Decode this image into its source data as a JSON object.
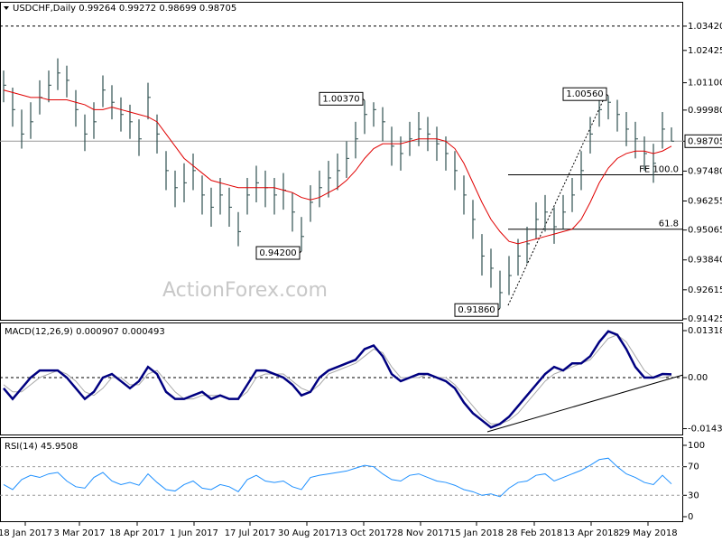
{
  "chart_data": [
    {
      "type": "ohlc",
      "title": "USDCHF,Daily 0.99264 0.99272 0.98699 0.98705",
      "watermark": "ActionForex.com",
      "xlim": [
        0,
        74
      ],
      "xticks": [
        {
          "value": 2.4,
          "label": "18 Jan 2017"
        },
        {
          "value": 8.4,
          "label": "3 Mar 2017"
        },
        {
          "value": 14.8,
          "label": "18 Apr 2017"
        },
        {
          "value": 21.1,
          "label": "1 Jun 2017"
        },
        {
          "value": 27.3,
          "label": "17 Jul 2017"
        },
        {
          "value": 33.6,
          "label": "30 Aug 2017"
        },
        {
          "value": 39.9,
          "label": "13 Oct 2017"
        },
        {
          "value": 46.2,
          "label": "28 Nov 2017"
        },
        {
          "value": 52.4,
          "label": "15 Jan 2018"
        },
        {
          "value": 58.8,
          "label": "28 Feb 2018"
        },
        {
          "value": 65.1,
          "label": "13 Apr 2018"
        },
        {
          "value": 71.4,
          "label": "29 May 2018"
        }
      ],
      "ylim": [
        0.9135,
        1.0438
      ],
      "yticks": [
        {
          "value": 1.0342,
          "label": "1.03420"
        },
        {
          "value": 1.02425,
          "label": "1.02425"
        },
        {
          "value": 1.011,
          "label": "1.01100"
        },
        {
          "value": 0.9998,
          "label": "0.99980"
        },
        {
          "value": 0.98705,
          "label": "0.98705"
        },
        {
          "value": 0.9748,
          "label": "0.97480"
        },
        {
          "value": 0.96255,
          "label": "0.96255"
        },
        {
          "value": 0.95065,
          "label": "0.95065"
        },
        {
          "value": 0.9384,
          "label": "0.93840"
        },
        {
          "value": 0.92615,
          "label": "0.92615"
        },
        {
          "value": 0.91425,
          "label": "0.91425"
        }
      ],
      "color": "#2f4f4f",
      "high": [
        1.016,
        1.009,
        1.0,
        1.003,
        1.012,
        1.016,
        1.021,
        1.018,
        1.008,
        0.998,
        1.003,
        1.014,
        1.01,
        1.005,
        1.002,
        0.996,
        1.011,
        0.998,
        0.983,
        0.975,
        0.978,
        0.982,
        0.973,
        0.968,
        0.972,
        0.968,
        0.958,
        0.972,
        0.977,
        0.975,
        0.972,
        0.974,
        0.966,
        0.956,
        0.969,
        0.975,
        0.979,
        0.982,
        0.987,
        0.995,
        1.0037,
        1.003,
        1.001,
        0.993,
        0.989,
        0.995,
        0.999,
        0.997,
        0.993,
        0.989,
        0.983,
        0.973,
        0.963,
        0.949,
        0.943,
        0.934,
        0.94,
        0.947,
        0.952,
        0.962,
        0.965,
        0.96,
        0.965,
        0.972,
        0.983,
        0.997,
        1.004,
        1.0056,
        1.004,
        0.999,
        0.995,
        0.989,
        0.986,
        0.999,
        0.9927
      ],
      "low": [
        1.003,
        0.993,
        0.984,
        0.988,
        0.998,
        1.003,
        1.008,
        1.005,
        0.993,
        0.983,
        0.988,
        1.001,
        0.996,
        0.991,
        0.988,
        0.981,
        0.996,
        0.982,
        0.967,
        0.96,
        0.962,
        0.967,
        0.957,
        0.952,
        0.957,
        0.952,
        0.944,
        0.957,
        0.962,
        0.96,
        0.957,
        0.959,
        0.95,
        0.942,
        0.954,
        0.96,
        0.964,
        0.967,
        0.972,
        0.98,
        0.99,
        0.993,
        0.987,
        0.977,
        0.975,
        0.981,
        0.985,
        0.983,
        0.979,
        0.975,
        0.967,
        0.957,
        0.947,
        0.932,
        0.927,
        0.9186,
        0.924,
        0.932,
        0.937,
        0.947,
        0.95,
        0.945,
        0.951,
        0.958,
        0.967,
        0.982,
        0.993,
        0.996,
        0.991,
        0.985,
        0.98,
        0.975,
        0.97,
        0.984,
        0.987
      ],
      "close": [
        1.01,
        1.0,
        0.99,
        0.995,
        1.005,
        1.01,
        1.015,
        1.012,
        1.0,
        0.99,
        0.995,
        1.008,
        1.003,
        0.998,
        0.995,
        0.988,
        1.005,
        0.99,
        0.975,
        0.968,
        0.97,
        0.975,
        0.965,
        0.96,
        0.965,
        0.96,
        0.95,
        0.965,
        0.97,
        0.968,
        0.965,
        0.967,
        0.958,
        0.948,
        0.962,
        0.968,
        0.972,
        0.975,
        0.98,
        0.988,
        0.998,
        1.0,
        0.995,
        0.985,
        0.982,
        0.988,
        0.992,
        0.99,
        0.986,
        0.982,
        0.975,
        0.965,
        0.955,
        0.94,
        0.935,
        0.925,
        0.932,
        0.94,
        0.945,
        0.955,
        0.958,
        0.952,
        0.958,
        0.965,
        0.975,
        0.99,
        1.0,
        1.003,
        0.998,
        0.992,
        0.988,
        0.982,
        0.978,
        0.992,
        0.98705
      ],
      "moving_average": {
        "color": "#e00000",
        "values": [
          1.008,
          1.007,
          1.006,
          1.005,
          1.005,
          1.004,
          1.004,
          1.004,
          1.003,
          1.002,
          1.0,
          1.0,
          1.001,
          1.0,
          0.999,
          0.998,
          0.997,
          0.995,
          0.99,
          0.985,
          0.98,
          0.977,
          0.974,
          0.971,
          0.97,
          0.969,
          0.968,
          0.968,
          0.968,
          0.968,
          0.968,
          0.967,
          0.966,
          0.964,
          0.963,
          0.964,
          0.966,
          0.968,
          0.971,
          0.975,
          0.98,
          0.984,
          0.986,
          0.986,
          0.986,
          0.987,
          0.988,
          0.988,
          0.988,
          0.987,
          0.984,
          0.978,
          0.97,
          0.962,
          0.955,
          0.95,
          0.946,
          0.945,
          0.946,
          0.947,
          0.948,
          0.949,
          0.95,
          0.951,
          0.955,
          0.962,
          0.97,
          0.976,
          0.98,
          0.982,
          0.983,
          0.983,
          0.982,
          0.983,
          0.985
        ]
      },
      "levels": [
        {
          "label": "FE 100.0",
          "value": 0.9733
        },
        {
          "label": "61.8",
          "value": 0.951
        }
      ],
      "annotations": [
        {
          "label": "1.00370",
          "value": 1.0037,
          "x": 40
        },
        {
          "label": "0.94200",
          "value": 0.942,
          "x": 33
        },
        {
          "label": "0.91860",
          "value": 0.9186,
          "x": 55
        },
        {
          "label": "1.00560",
          "value": 1.0056,
          "x": 67
        }
      ]
    },
    {
      "type": "macd",
      "title": "MACD(12,26,9) 0.000907 0.000493",
      "xlim": [
        0,
        74
      ],
      "ylim": [
        -0.01623,
        0.01521
      ],
      "yticks": [
        0.013184,
        {
          "value": 0,
          "label": "0.00"
        },
        -0.014339
      ],
      "series": [
        {
          "name": "MACD",
          "color": "#000080",
          "values": [
            -0.003,
            -0.006,
            -0.003,
            0.0,
            0.002,
            0.002,
            0.002,
            0.0,
            -0.003,
            -0.006,
            -0.004,
            0.0,
            0.001,
            -0.001,
            -0.003,
            -0.001,
            0.003,
            0.001,
            -0.004,
            -0.006,
            -0.006,
            -0.005,
            -0.004,
            -0.006,
            -0.005,
            -0.006,
            -0.006,
            -0.002,
            0.002,
            0.002,
            0.001,
            0.0,
            -0.002,
            -0.005,
            -0.004,
            0.0,
            0.002,
            0.003,
            0.004,
            0.005,
            0.008,
            0.009,
            0.006,
            0.001,
            -0.001,
            0.0,
            0.001,
            0.001,
            0.0,
            -0.001,
            -0.003,
            -0.007,
            -0.01,
            -0.012,
            -0.014,
            -0.013,
            -0.011,
            -0.008,
            -0.005,
            -0.002,
            0.001,
            0.003,
            0.002,
            0.004,
            0.004,
            0.006,
            0.01,
            0.013,
            0.012,
            0.008,
            0.003,
            0.0,
            0.0,
            0.001,
            0.000907
          ]
        },
        {
          "name": "Signal",
          "color": "#a8a8a8",
          "values": [
            -0.002,
            -0.004,
            -0.004,
            -0.002,
            0.0,
            0.001,
            0.002,
            0.001,
            -0.001,
            -0.004,
            -0.005,
            -0.003,
            0.0,
            0.0,
            -0.002,
            -0.002,
            0.001,
            0.002,
            -0.001,
            -0.004,
            -0.006,
            -0.006,
            -0.005,
            -0.005,
            -0.005,
            -0.006,
            -0.006,
            -0.004,
            0.0,
            0.001,
            0.001,
            0.001,
            -0.001,
            -0.003,
            -0.004,
            -0.002,
            0.001,
            0.002,
            0.003,
            0.004,
            0.006,
            0.008,
            0.007,
            0.003,
            0.0,
            0.0,
            0.0,
            0.001,
            0.0,
            0.0,
            -0.002,
            -0.005,
            -0.008,
            -0.011,
            -0.013,
            -0.013,
            -0.012,
            -0.01,
            -0.007,
            -0.004,
            -0.001,
            0.001,
            0.002,
            0.003,
            0.004,
            0.005,
            0.008,
            0.011,
            0.012,
            0.01,
            0.006,
            0.002,
            0.0,
            0.0,
            0.000493
          ]
        }
      ]
    },
    {
      "type": "rsi",
      "title": "RSI(14) 45.9508",
      "xlim": [
        0,
        74
      ],
      "ylim": [
        -7.6,
        110.1
      ],
      "yticks": [
        100,
        70,
        30,
        0
      ],
      "levels": [
        70,
        30
      ],
      "series": [
        {
          "name": "RSI",
          "color": "#1e90ff",
          "values": [
            45,
            38,
            52,
            58,
            55,
            60,
            62,
            50,
            42,
            40,
            55,
            62,
            50,
            45,
            48,
            44,
            60,
            48,
            38,
            36,
            45,
            50,
            40,
            38,
            45,
            42,
            35,
            52,
            58,
            50,
            48,
            50,
            42,
            38,
            55,
            58,
            60,
            62,
            64,
            68,
            72,
            70,
            60,
            52,
            50,
            58,
            60,
            55,
            50,
            48,
            44,
            38,
            35,
            30,
            32,
            28,
            40,
            48,
            50,
            58,
            60,
            50,
            55,
            60,
            65,
            72,
            80,
            82,
            70,
            60,
            55,
            48,
            45,
            58,
            45.9508
          ]
        }
      ]
    }
  ]
}
